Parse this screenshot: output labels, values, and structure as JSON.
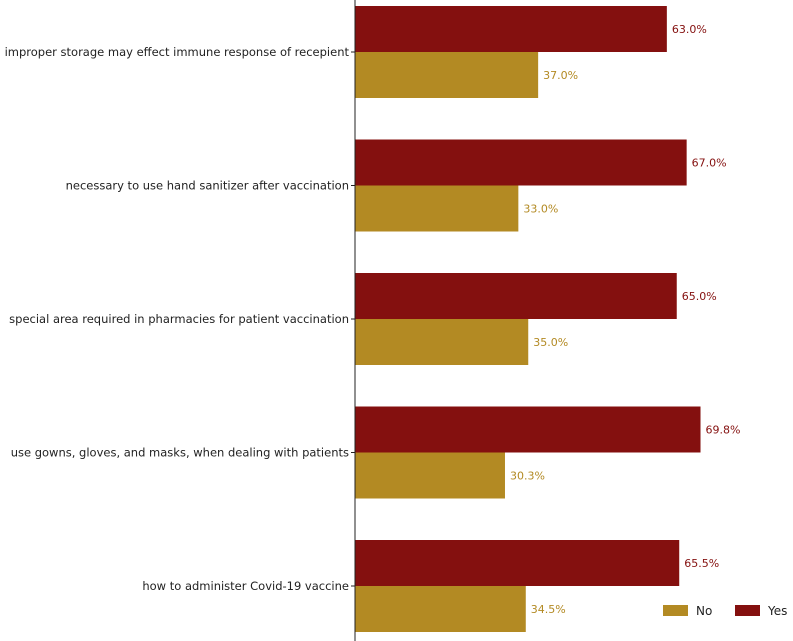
{
  "chart_data": {
    "type": "bar",
    "orientation": "horizontal",
    "categories": [
      "improper storage may effect immune response of recepient",
      "necessary to use hand sanitizer after vaccination",
      "special area required in pharmacies for patient vaccination",
      "use gowns, gloves, and masks, when dealing with patients",
      "how to administer Covid-19 vaccine"
    ],
    "series": [
      {
        "name": "Yes",
        "color": "#84100f",
        "values": [
          63.0,
          67.0,
          65.0,
          69.8,
          65.5
        ],
        "labels": [
          "63.0%",
          "67.0%",
          "65.0%",
          "69.8%",
          "65.5%"
        ]
      },
      {
        "name": "No",
        "color": "#b38a23",
        "values": [
          37.0,
          33.0,
          35.0,
          30.3,
          34.5
        ],
        "labels": [
          "37.0%",
          "33.0%",
          "35.0%",
          "30.3%",
          "34.5%"
        ]
      }
    ],
    "xlim": [
      0,
      100
    ],
    "grid": false,
    "legend": {
      "position": "bottom-right",
      "items": [
        {
          "name": "No",
          "color": "#b38a23"
        },
        {
          "name": "Yes",
          "color": "#84100f"
        }
      ]
    }
  }
}
